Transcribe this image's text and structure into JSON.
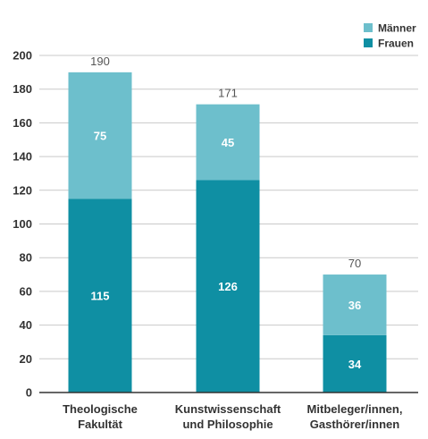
{
  "colors": {
    "maenner": "#6dbfcc",
    "frauen": "#0f8fa3",
    "axis": "#333333",
    "grid": "#c9c9c9"
  },
  "chart_data": {
    "type": "bar",
    "stacked": true,
    "categories": [
      [
        "Theologische",
        "Fakultät"
      ],
      [
        "Kunstwissenschaft",
        "und Philosophie"
      ],
      [
        "Mitbeleger/innen,",
        "Gasthörer/innen"
      ]
    ],
    "series": [
      {
        "name": "Frauen",
        "values": [
          115,
          126,
          34
        ]
      },
      {
        "name": "Männer",
        "values": [
          75,
          45,
          36
        ]
      }
    ],
    "totals": [
      190,
      171,
      70
    ],
    "ylim": [
      0,
      200
    ],
    "yticks": [
      0,
      20,
      40,
      60,
      80,
      100,
      120,
      140,
      160,
      180,
      200
    ],
    "xlabel": "",
    "ylabel": "",
    "title": "",
    "grid": true,
    "legend": {
      "position": "top-right",
      "entries": [
        "Männer",
        "Frauen"
      ]
    }
  }
}
